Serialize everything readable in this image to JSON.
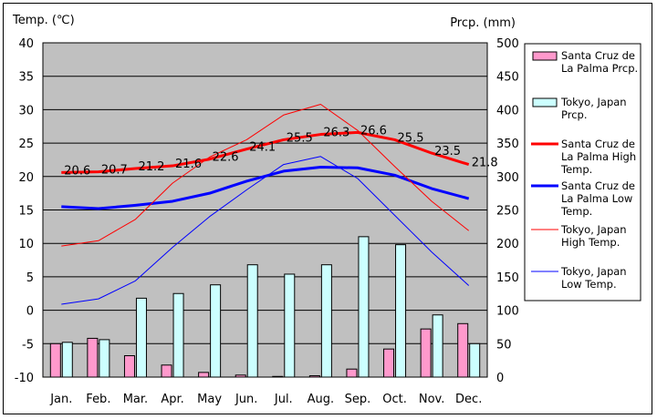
{
  "chart_data": {
    "type": "bar+line",
    "left_axis_title": "Temp. (℃)",
    "right_axis_title": "Prcp. (mm)",
    "categories": [
      "Jan.",
      "Feb.",
      "Mar.",
      "Apr.",
      "May",
      "Jun.",
      "Jul.",
      "Aug.",
      "Sep.",
      "Oct.",
      "Nov.",
      "Dec."
    ],
    "temp_ticks": [
      "40",
      "35",
      "30",
      "25",
      "20",
      "15",
      "10",
      "5",
      "0",
      "-5",
      "-10"
    ],
    "prcp_ticks": [
      "500",
      "450",
      "400",
      "350",
      "300",
      "250",
      "200",
      "150",
      "100",
      "50",
      "0"
    ],
    "ylim_temp": [
      -10,
      40
    ],
    "ylim_prcp": [
      0,
      500
    ],
    "grid": true,
    "plot_background": "#c0c0c0",
    "bars": [
      {
        "name": "Santa Cruz de La Palma Prcp.",
        "legend_label": "Santa Cruz de\nLa Palma Prcp.",
        "color": "#ff99cc",
        "values": [
          50,
          58,
          32,
          18,
          7,
          3,
          1,
          2,
          12,
          42,
          72,
          80
        ]
      },
      {
        "name": "Tokyo, Japan Prcp.",
        "legend_label": "Tokyo, Japan\nPrcp.",
        "color": "#ccffff",
        "values": [
          52,
          56,
          118,
          125,
          138,
          168,
          154,
          168,
          210,
          198,
          93,
          50
        ]
      }
    ],
    "lines": [
      {
        "name": "Santa Cruz de La Palma High Temp.",
        "legend_label": "Santa Cruz de\nLa Palma High\nTemp.",
        "color": "#ff0000",
        "width": 3,
        "values": [
          20.6,
          20.7,
          21.2,
          21.6,
          22.6,
          24.1,
          25.5,
          26.3,
          26.6,
          25.5,
          23.5,
          21.8
        ],
        "labels": [
          "20.6",
          "20.7",
          "21.2",
          "21.6",
          "22.6",
          "24.1",
          "25.5",
          "26.3",
          "26.6",
          "25.5",
          "23.5",
          "21.8"
        ]
      },
      {
        "name": "Santa Cruz de La Palma Low Temp.",
        "legend_label": "Santa Cruz de\nLa Palma Low\nTemp.",
        "color": "#0000ff",
        "width": 3,
        "values": [
          15.5,
          15.2,
          15.7,
          16.3,
          17.5,
          19.3,
          20.8,
          21.4,
          21.3,
          20.2,
          18.2,
          16.7
        ]
      },
      {
        "name": "Tokyo, Japan High Temp.",
        "legend_label": "Tokyo, Japan\nHigh Temp.",
        "color": "#ff0000",
        "width": 1,
        "values": [
          9.6,
          10.4,
          13.6,
          19.0,
          22.9,
          25.5,
          29.2,
          30.8,
          26.9,
          21.5,
          16.3,
          11.9
        ]
      },
      {
        "name": "Tokyo, Japan Low Temp.",
        "legend_label": "Tokyo, Japan\nLow Temp.",
        "color": "#0000ff",
        "width": 1,
        "values": [
          0.9,
          1.7,
          4.4,
          9.4,
          14.0,
          18.0,
          21.8,
          23.0,
          19.7,
          14.2,
          8.7,
          3.7
        ]
      }
    ]
  }
}
